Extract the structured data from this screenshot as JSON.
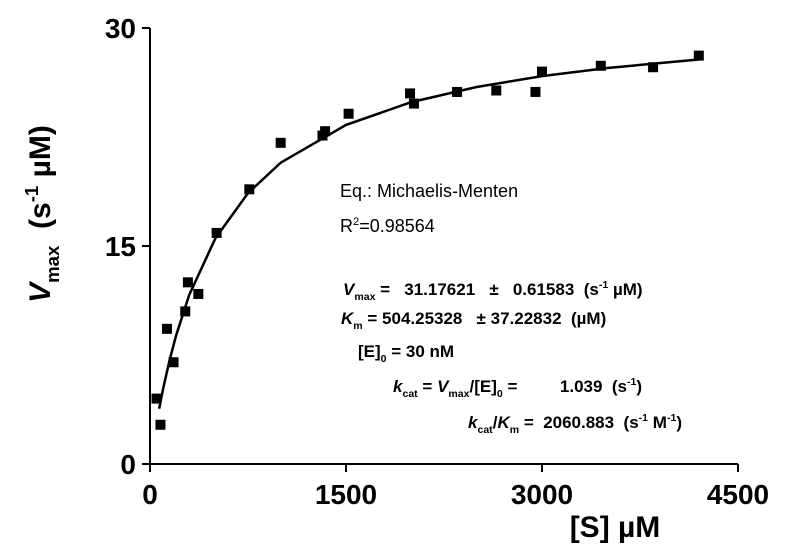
{
  "chart_data": {
    "type": "scatter",
    "xlabel": [
      {
        "text": "[S] µM",
        "style": "normal"
      }
    ],
    "ylabel": [
      {
        "text": "V",
        "style": "italic"
      },
      {
        "text": "max",
        "style": "sub"
      },
      {
        "text": "  (s",
        "style": "normal"
      },
      {
        "text": "-1",
        "style": "sup"
      },
      {
        "text": " µM)",
        "style": "normal"
      }
    ],
    "xlim": [
      0,
      4500
    ],
    "xticks": [
      0,
      1500,
      3000,
      4500
    ],
    "ylim": [
      0,
      30
    ],
    "yticks": [
      0,
      15,
      30
    ],
    "series": [
      {
        "mode": "markers",
        "color": "#000000",
        "x": [
          50,
          80,
          130,
          180,
          270,
          290,
          370,
          510,
          760,
          1000,
          1320,
          1340,
          1520,
          1990,
          2020,
          2350,
          2650,
          2950,
          3000,
          3450,
          3850,
          4200
        ],
        "values": [
          4.5,
          2.7,
          9.3,
          7.0,
          10.5,
          12.5,
          11.7,
          15.9,
          18.9,
          22.1,
          22.6,
          22.9,
          24.1,
          25.5,
          24.8,
          25.6,
          25.7,
          25.6,
          27.0,
          27.4,
          27.3,
          28.1
        ]
      },
      {
        "mode": "line",
        "color": "#000000",
        "x": [
          70,
          100,
          150,
          200,
          300,
          500,
          750,
          1000,
          1500,
          2000,
          2500,
          3000,
          3500,
          4200
        ],
        "values": [
          3.8,
          5.16,
          7.15,
          8.85,
          11.63,
          15.52,
          18.64,
          20.73,
          23.33,
          24.9,
          25.94,
          26.69,
          27.25,
          27.83
        ]
      }
    ],
    "annotations": [
      {
        "style": "normal",
        "parts": [
          {
            "text": "Eq.: Michaelis-Menten",
            "style": "normal"
          }
        ]
      },
      {
        "style": "normal",
        "parts": [
          {
            "text": "R",
            "style": "normal"
          },
          {
            "text": "2",
            "style": "sup"
          },
          {
            "text": "=0.98564",
            "style": "normal"
          }
        ]
      },
      {
        "style": "bold",
        "parts": [
          {
            "text": "V",
            "style": "italic"
          },
          {
            "text": "max",
            "style": "sub"
          },
          {
            "text": " =   31.17621   ±   0.61583  (s",
            "style": "normal"
          },
          {
            "text": "-1",
            "style": "sup"
          },
          {
            "text": " µM)",
            "style": "normal"
          }
        ]
      },
      {
        "style": "bold",
        "parts": [
          {
            "text": "K",
            "style": "italic"
          },
          {
            "text": "m",
            "style": "sub"
          },
          {
            "text": " = 504.25328   ± 37.22832  (µM)",
            "style": "normal"
          }
        ]
      },
      {
        "style": "bold",
        "parts": [
          {
            "text": "[E]",
            "style": "normal"
          },
          {
            "text": "0",
            "style": "sub"
          },
          {
            "text": " = 30 nM",
            "style": "normal"
          }
        ]
      },
      {
        "style": "bold",
        "parts": [
          {
            "text": "k",
            "style": "italic"
          },
          {
            "text": "cat",
            "style": "sub"
          },
          {
            "text": " = ",
            "style": "normal"
          },
          {
            "text": "V",
            "style": "italic"
          },
          {
            "text": "max",
            "style": "sub"
          },
          {
            "text": "/[E]",
            "style": "normal"
          },
          {
            "text": "0",
            "style": "sub"
          },
          {
            "text": " =         1.039  (s",
            "style": "normal"
          },
          {
            "text": "-1",
            "style": "sup"
          },
          {
            "text": ")",
            "style": "normal"
          }
        ]
      },
      {
        "style": "bold",
        "parts": [
          {
            "text": "k",
            "style": "italic"
          },
          {
            "text": "cat",
            "style": "sub"
          },
          {
            "text": "/",
            "style": "normal"
          },
          {
            "text": "K",
            "style": "italic"
          },
          {
            "text": "m",
            "style": "sub"
          },
          {
            "text": " =  2060.883  (s",
            "style": "normal"
          },
          {
            "text": "-1",
            "style": "sup"
          },
          {
            "text": " M",
            "style": "normal"
          },
          {
            "text": "-1",
            "style": "sup"
          },
          {
            "text": ")",
            "style": "normal"
          }
        ]
      }
    ]
  }
}
